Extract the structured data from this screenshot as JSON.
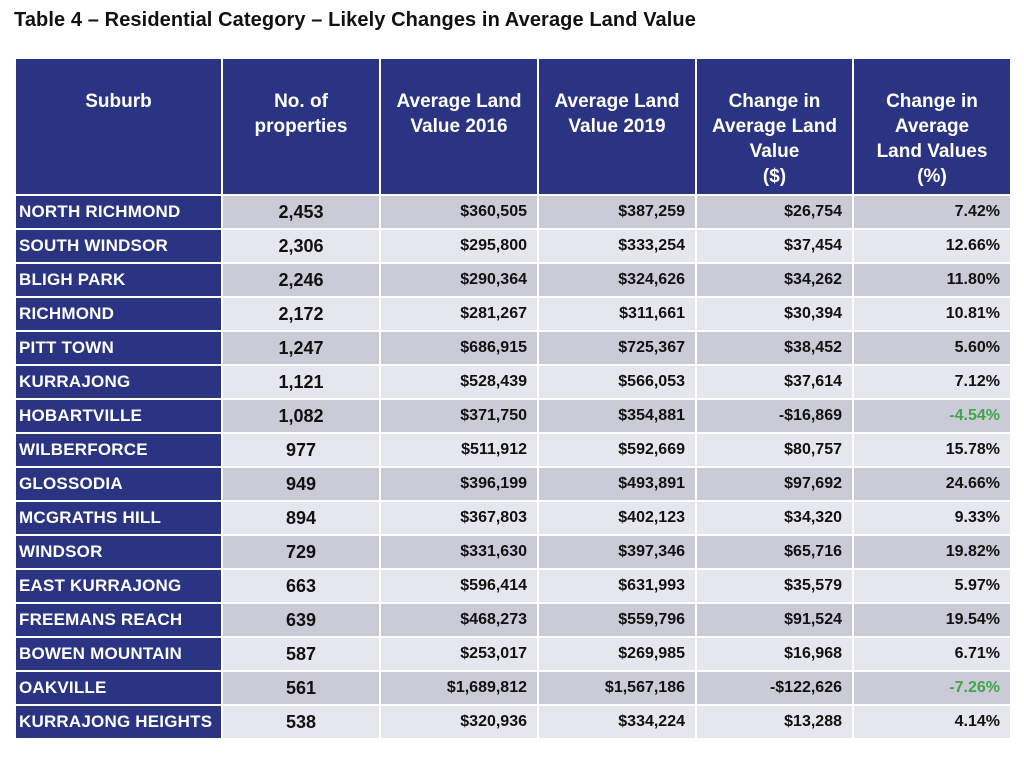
{
  "title": "Table 4 – Residential Category – Likely Changes in Average Land Value",
  "header": {
    "suburb": [
      "Suburb"
    ],
    "properties": [
      "No. of",
      "properties"
    ],
    "avg2016": [
      "Average Land",
      "Value 2016"
    ],
    "avg2019": [
      "Average Land",
      "Value 2019"
    ],
    "change_dollar": [
      "Change in",
      "Average Land",
      "Value",
      "($)"
    ],
    "change_pct": [
      "Change in",
      "Average",
      "Land Values",
      "(%)"
    ]
  },
  "colors": {
    "header_bg": "#2b3483",
    "row_dark": "#cbcbd8",
    "row_light": "#e6e6ee",
    "negative_pct": "#3fa64a"
  },
  "rows": [
    {
      "suburb": "NORTH RICHMOND",
      "properties": "2,453",
      "avg2016": "$360,505",
      "avg2019": "$387,259",
      "change": "$26,754",
      "pct": "7.42%",
      "negative": false
    },
    {
      "suburb": "SOUTH WINDSOR",
      "properties": "2,306",
      "avg2016": "$295,800",
      "avg2019": "$333,254",
      "change": "$37,454",
      "pct": "12.66%",
      "negative": false
    },
    {
      "suburb": "BLIGH PARK",
      "properties": "2,246",
      "avg2016": "$290,364",
      "avg2019": "$324,626",
      "change": "$34,262",
      "pct": "11.80%",
      "negative": false
    },
    {
      "suburb": "RICHMOND",
      "properties": "2,172",
      "avg2016": "$281,267",
      "avg2019": "$311,661",
      "change": "$30,394",
      "pct": "10.81%",
      "negative": false
    },
    {
      "suburb": "PITT TOWN",
      "properties": "1,247",
      "avg2016": "$686,915",
      "avg2019": "$725,367",
      "change": "$38,452",
      "pct": "5.60%",
      "negative": false
    },
    {
      "suburb": "KURRAJONG",
      "properties": "1,121",
      "avg2016": "$528,439",
      "avg2019": "$566,053",
      "change": "$37,614",
      "pct": "7.12%",
      "negative": false
    },
    {
      "suburb": "HOBARTVILLE",
      "properties": "1,082",
      "avg2016": "$371,750",
      "avg2019": "$354,881",
      "change": "-$16,869",
      "pct": "-4.54%",
      "negative": true
    },
    {
      "suburb": "WILBERFORCE",
      "properties": "977",
      "avg2016": "$511,912",
      "avg2019": "$592,669",
      "change": "$80,757",
      "pct": "15.78%",
      "negative": false
    },
    {
      "suburb": "GLOSSODIA",
      "properties": "949",
      "avg2016": "$396,199",
      "avg2019": "$493,891",
      "change": "$97,692",
      "pct": "24.66%",
      "negative": false
    },
    {
      "suburb": "MCGRATHS HILL",
      "properties": "894",
      "avg2016": "$367,803",
      "avg2019": "$402,123",
      "change": "$34,320",
      "pct": "9.33%",
      "negative": false
    },
    {
      "suburb": "WINDSOR",
      "properties": "729",
      "avg2016": "$331,630",
      "avg2019": "$397,346",
      "change": "$65,716",
      "pct": "19.82%",
      "negative": false
    },
    {
      "suburb": "EAST KURRAJONG",
      "properties": "663",
      "avg2016": "$596,414",
      "avg2019": "$631,993",
      "change": "$35,579",
      "pct": "5.97%",
      "negative": false
    },
    {
      "suburb": "FREEMANS REACH",
      "properties": "639",
      "avg2016": "$468,273",
      "avg2019": "$559,796",
      "change": "$91,524",
      "pct": "19.54%",
      "negative": false
    },
    {
      "suburb": "BOWEN MOUNTAIN",
      "properties": "587",
      "avg2016": "$253,017",
      "avg2019": "$269,985",
      "change": "$16,968",
      "pct": "6.71%",
      "negative": false
    },
    {
      "suburb": "OAKVILLE",
      "properties": "561",
      "avg2016": "$1,689,812",
      "avg2019": "$1,567,186",
      "change": "-$122,626",
      "pct": "-7.26%",
      "negative": true
    },
    {
      "suburb": "KURRAJONG HEIGHTS",
      "properties": "538",
      "avg2016": "$320,936",
      "avg2019": "$334,224",
      "change": "$13,288",
      "pct": "4.14%",
      "negative": false
    }
  ]
}
